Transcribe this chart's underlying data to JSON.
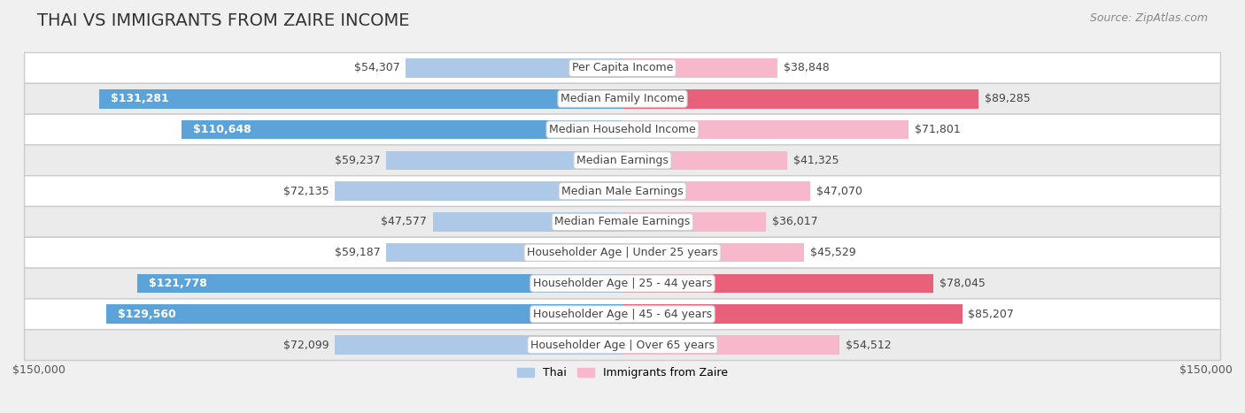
{
  "title": "Thai vs Immigrants from Zaire Income",
  "source": "Source: ZipAtlas.com",
  "categories": [
    "Per Capita Income",
    "Median Family Income",
    "Median Household Income",
    "Median Earnings",
    "Median Male Earnings",
    "Median Female Earnings",
    "Householder Age | Under 25 years",
    "Householder Age | 25 - 44 years",
    "Householder Age | 45 - 64 years",
    "Householder Age | Over 65 years"
  ],
  "thai_values": [
    54307,
    131281,
    110648,
    59237,
    72135,
    47577,
    59187,
    121778,
    129560,
    72099
  ],
  "zaire_values": [
    38848,
    89285,
    71801,
    41325,
    47070,
    36017,
    45529,
    78045,
    85207,
    54512
  ],
  "thai_labels": [
    "$54,307",
    "$131,281",
    "$110,648",
    "$59,237",
    "$72,135",
    "$47,577",
    "$59,187",
    "$121,778",
    "$129,560",
    "$72,099"
  ],
  "zaire_labels": [
    "$38,848",
    "$89,285",
    "$71,801",
    "$41,325",
    "$47,070",
    "$36,017",
    "$45,529",
    "$78,045",
    "$85,207",
    "$54,512"
  ],
  "thai_color_light": "#aec9e8",
  "thai_color_dark": "#5ba3d9",
  "zaire_color_light": "#f7b8cc",
  "zaire_color_dark": "#e8607a",
  "thai_dark_threshold": 100000,
  "zaire_dark_threshold": 75000,
  "max_value": 150000,
  "xlabel_left": "$150,000",
  "xlabel_right": "$150,000",
  "legend_thai": "Thai",
  "legend_zaire": "Immigrants from Zaire",
  "background_color": "#f0f0f0",
  "row_colors": [
    "#ffffff",
    "#ebebeb"
  ],
  "title_fontsize": 14,
  "source_fontsize": 9,
  "label_fontsize": 9,
  "category_fontsize": 9,
  "axis_fontsize": 9
}
